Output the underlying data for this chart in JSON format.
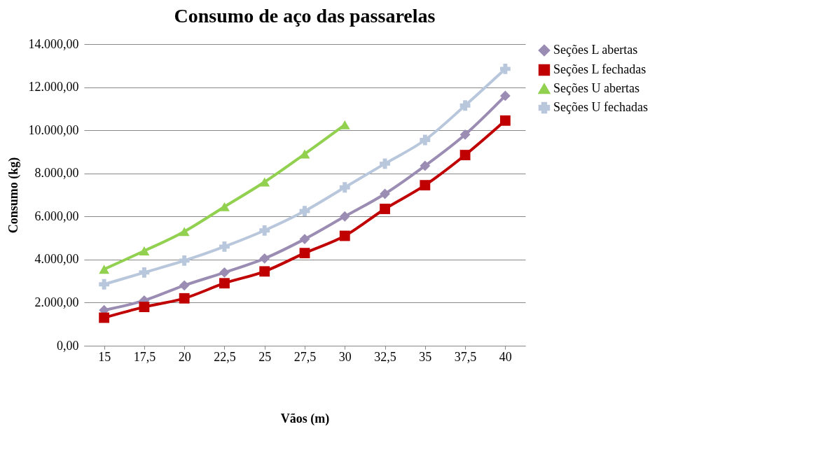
{
  "chart_data": {
    "type": "line",
    "title": "Consumo de aço das passarelas",
    "xlabel": "Vãos (m)",
    "ylabel": "Consumo (kg)",
    "categories": [
      "15",
      "17,5",
      "20",
      "22,5",
      "25",
      "27,5",
      "30",
      "32,5",
      "35",
      "37,5",
      "40"
    ],
    "series": [
      {
        "name": "Seções L abertas",
        "color": "#9a8cb2",
        "marker": "diamond",
        "values": [
          1650,
          2100,
          2800,
          3400,
          4050,
          4950,
          6000,
          7050,
          8350,
          9800,
          11600
        ]
      },
      {
        "name": "Seções L fechadas",
        "color": "#c00000",
        "marker": "square",
        "values": [
          1300,
          1800,
          2200,
          2900,
          3450,
          4300,
          5100,
          6350,
          7450,
          8850,
          10450
        ]
      },
      {
        "name": "Seções U abertas",
        "color": "#92d050",
        "marker": "triangle",
        "values": [
          3550,
          4400,
          5300,
          6450,
          7600,
          8900,
          10250,
          null,
          null,
          null,
          null
        ]
      },
      {
        "name": "Seções U fechadas",
        "color": "#b9c7dc",
        "marker": "cross",
        "values": [
          2850,
          3400,
          3950,
          4600,
          5350,
          6250,
          7350,
          8450,
          9550,
          11150,
          12850
        ]
      }
    ],
    "ylim": [
      0,
      14000
    ],
    "yticks": [
      {
        "value": 0,
        "label": "0,00"
      },
      {
        "value": 2000,
        "label": "2.000,00"
      },
      {
        "value": 4000,
        "label": "4.000,00"
      },
      {
        "value": 6000,
        "label": "6.000,00"
      },
      {
        "value": 8000,
        "label": "8.000,00"
      },
      {
        "value": 10000,
        "label": "10.000,00"
      },
      {
        "value": 12000,
        "label": "12.000,00"
      },
      {
        "value": 14000,
        "label": "14.000,00"
      }
    ],
    "grid": "y",
    "legend": "right"
  }
}
